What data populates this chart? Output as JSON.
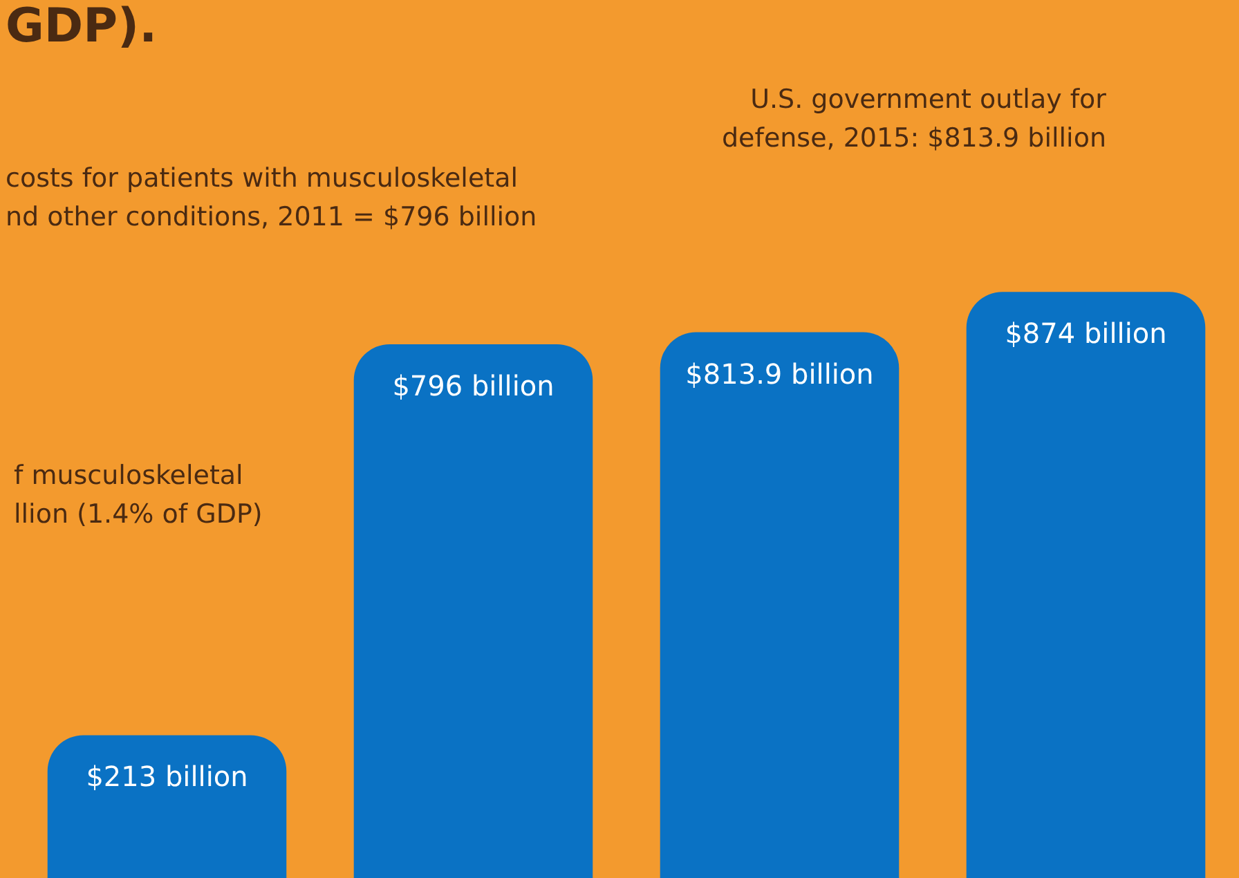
{
  "chart_data": {
    "type": "bar",
    "categories": [
      null,
      null,
      null,
      null
    ],
    "values": [
      213,
      796,
      813.9,
      874
    ],
    "value_labels": [
      "$213 billion",
      "$796 billion",
      "$813.9 billion",
      "$874 billion"
    ],
    "color": "#0a72c4",
    "annotations": [
      "GDP).",
      "f musculoskeletal\nllion (1.4% of GDP)",
      "costs for patients with musculoskeletal\nnd other conditions, 2011 = $796 billion",
      "U.S. government outlay for\ndefense, 2015: $813.9 billion"
    ]
  }
}
